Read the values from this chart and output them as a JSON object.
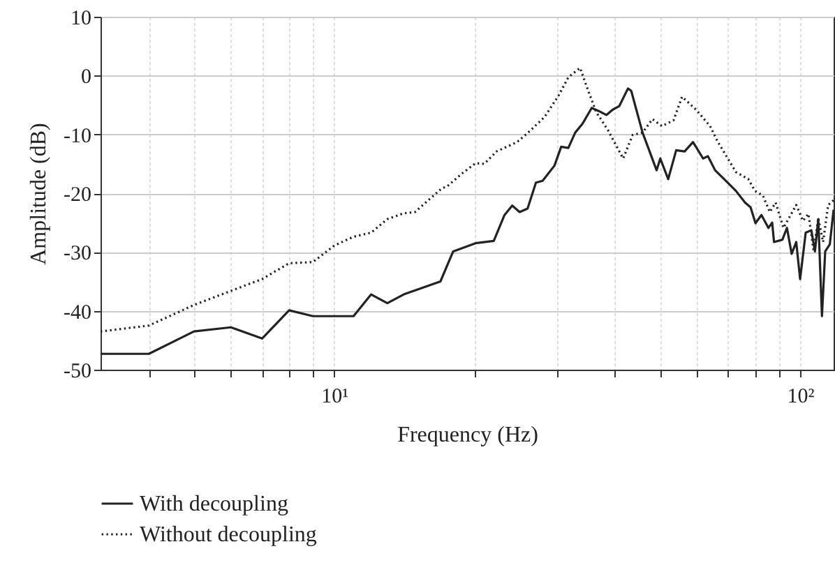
{
  "chart_data": {
    "type": "line",
    "xlabel": "Frequency (Hz)",
    "ylabel": "Amplitude (dB)",
    "xlim": [
      3.15,
      118
    ],
    "ylim": [
      -50,
      10
    ],
    "xticks": [
      {
        "value": 4,
        "label": null
      },
      {
        "value": 5,
        "label": null
      },
      {
        "value": 6,
        "label": null
      },
      {
        "value": 7,
        "label": null
      },
      {
        "value": 8,
        "label": null
      },
      {
        "value": 9,
        "label": null
      },
      {
        "value": 10,
        "label": "10¹"
      },
      {
        "value": 20,
        "label": null
      },
      {
        "value": 30,
        "label": null
      },
      {
        "value": 40,
        "label": null
      },
      {
        "value": 50,
        "label": null
      },
      {
        "value": 60,
        "label": null
      },
      {
        "value": 70,
        "label": null
      },
      {
        "value": 80,
        "label": null
      },
      {
        "value": 90,
        "label": null
      },
      {
        "value": 100,
        "label": "10²"
      }
    ],
    "yticks": [
      -50,
      -40,
      -30,
      -20,
      -10,
      0,
      10
    ],
    "log": "x",
    "grid": true,
    "legend": "bottom",
    "series": [
      {
        "name": "With decoupling",
        "color": "#222222",
        "line_style": "solid",
        "x": [
          3.15,
          4.0,
          5.0,
          6.0,
          7.0,
          8.0,
          9.0,
          11.0,
          12.0,
          13.0,
          14.1,
          16.9,
          18.0,
          20.1,
          22.0,
          23.2,
          24.1,
          25.0,
          26.0,
          27.1,
          28.0,
          29.7,
          30.7,
          31.8,
          32.9,
          34.1,
          35.7,
          36.9,
          38.4,
          39.6,
          40.9,
          42.7,
          43.4,
          45.9,
          49.2,
          50.1,
          52.1,
          54.2,
          56.5,
          58.9,
          61.9,
          63.4,
          65.7,
          69.5,
          72.8,
          76.2,
          78.3,
          80.2,
          82.6,
          85.5,
          87.1,
          87.9,
          91.6,
          93.7,
          95.9,
          98.1,
          100,
          102.8,
          105.7,
          107.6,
          109.4,
          111.4,
          113.2,
          115.8,
          118
        ],
        "values": [
          -47.3,
          -47.3,
          -43.5,
          -42.8,
          -44.7,
          -39.9,
          -40.9,
          -40.9,
          -37.2,
          -38.7,
          -37.2,
          -35.0,
          -29.9,
          -28.5,
          -28.1,
          -23.7,
          -22.1,
          -23.2,
          -22.6,
          -18.2,
          -17.9,
          -15.3,
          -12.1,
          -12.3,
          -9.7,
          -8.2,
          -5.5,
          -6.0,
          -6.7,
          -5.8,
          -5.2,
          -2.2,
          -2.6,
          -9.7,
          -16.1,
          -14.1,
          -17.6,
          -12.7,
          -12.9,
          -11.3,
          -14.1,
          -13.7,
          -16.1,
          -18.0,
          -19.6,
          -21.6,
          -22.4,
          -25.1,
          -23.7,
          -25.9,
          -25.0,
          -28.3,
          -27.9,
          -25.9,
          -30.3,
          -28.3,
          -34.6,
          -26.7,
          -26.3,
          -29.9,
          -24.4,
          -40.9,
          -29.9,
          -28.7,
          -22.8
        ]
      },
      {
        "name": "Without decoupling",
        "color": "#222222",
        "line_style": "dotted",
        "x": [
          3.15,
          4.0,
          5.0,
          6.0,
          7.0,
          8.0,
          9.0,
          10,
          11.0,
          12.0,
          13.0,
          14.1,
          14.9,
          17.0,
          17.5,
          18.7,
          20.1,
          21.0,
          22.3,
          24.7,
          26.4,
          28.3,
          30.3,
          31.8,
          33.7,
          34.8,
          36.5,
          38.7,
          41.7,
          43.7,
          45.9,
          48.2,
          50.5,
          53.5,
          55.8,
          59.8,
          64.1,
          66.4,
          72.8,
          77.4,
          80.0,
          83.2,
          86.1,
          88.6,
          92.1,
          98.1,
          101.4,
          104.2,
          106.9,
          109.4,
          112.0,
          114.9,
          118
        ],
        "values": [
          -43.5,
          -42.5,
          -39.0,
          -36.6,
          -34.6,
          -31.9,
          -31.7,
          -28.9,
          -27.4,
          -26.7,
          -24.4,
          -23.4,
          -23.2,
          -19.2,
          -18.8,
          -16.8,
          -14.9,
          -15.0,
          -12.9,
          -11.3,
          -9.3,
          -7.0,
          -3.4,
          -0.3,
          1.3,
          -1.8,
          -6.2,
          -9.3,
          -14.1,
          -10.1,
          -9.7,
          -7.4,
          -8.6,
          -7.6,
          -3.6,
          -5.8,
          -8.6,
          -11.1,
          -16.4,
          -17.6,
          -19.6,
          -20.4,
          -23.2,
          -21.6,
          -25.9,
          -22.0,
          -24.7,
          -23.5,
          -29.9,
          -24.2,
          -28.3,
          -22.0,
          -21.2
        ]
      }
    ]
  }
}
